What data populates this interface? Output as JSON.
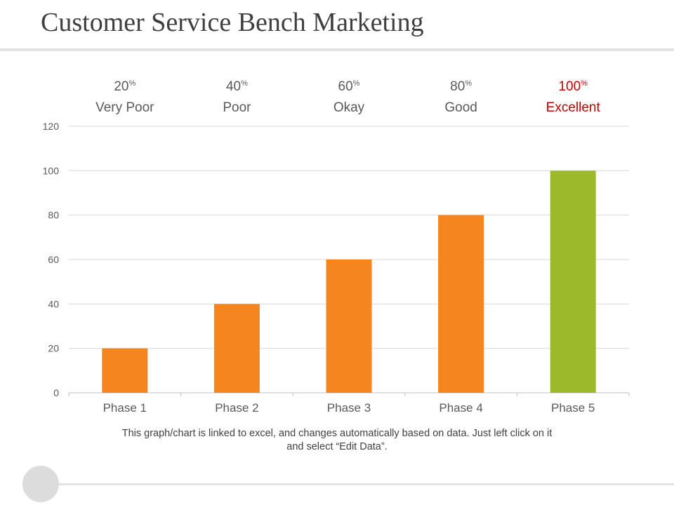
{
  "slide": {
    "title": "Customer Service Bench Marketing",
    "footnote": "This graph/chart is linked to excel, and changes automatically based on data. Just left click on it and select “Edit Data”."
  },
  "ratings": [
    {
      "value": "20",
      "unit": "%",
      "label": "Very Poor",
      "color": "#595959"
    },
    {
      "value": "40",
      "unit": "%",
      "label": "Poor",
      "color": "#595959"
    },
    {
      "value": "60",
      "unit": "%",
      "label": "Okay",
      "color": "#595959"
    },
    {
      "value": "80",
      "unit": "%",
      "label": "Good",
      "color": "#595959"
    },
    {
      "value": "100",
      "unit": "%",
      "label": "Excellent",
      "color": "#c00000"
    }
  ],
  "chart_data": {
    "type": "bar",
    "categories": [
      "Phase 1",
      "Phase 2",
      "Phase 3",
      "Phase 4",
      "Phase 5"
    ],
    "values": [
      20,
      40,
      60,
      80,
      100
    ],
    "bar_colors": [
      "#f5861f",
      "#f5861f",
      "#f5861f",
      "#f5861f",
      "#9cb82b"
    ],
    "ylim": [
      0,
      120
    ],
    "yticks": [
      0,
      20,
      40,
      60,
      80,
      100,
      120
    ],
    "grid": true,
    "title": "",
    "xlabel": "",
    "ylabel": ""
  }
}
